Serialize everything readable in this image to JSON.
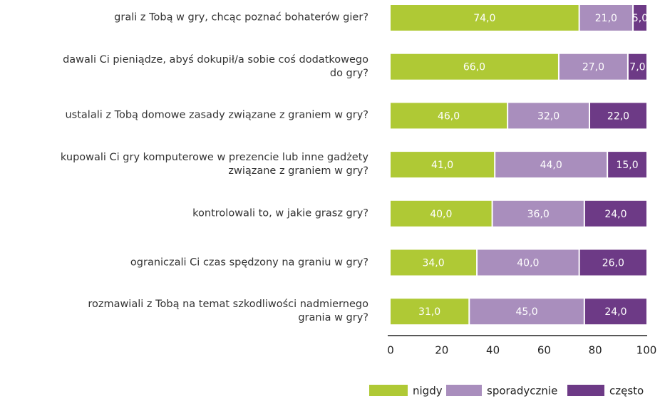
{
  "chart_data": {
    "type": "stacked-bar-horizontal",
    "categories": [
      "grali z Tobą w gry, chcąc poznać bohaterów gier?",
      "dawali Ci pieniądze, abyś dokupił/a sobie coś dodatkowego\ndo gry?",
      "ustalali z Tobą domowe zasady związane z graniem w gry?",
      "kupowali Ci gry komputerowe w prezencie lub inne gadżety\nzwiązane z graniem w gry?",
      "kontrolowali to, w jakie grasz gry?",
      "ograniczali Ci czas spędzony na graniu w gry?",
      "rozmawiali z Tobą na temat szkodliwości nadmiernego\ngrania w gry?"
    ],
    "series": [
      {
        "name": "nigdy",
        "color": "#afc935",
        "values": [
          74,
          66,
          46,
          41,
          40,
          34,
          31
        ],
        "value_labels": [
          "74,0",
          "66,0",
          "46,0",
          "41,0",
          "40,0",
          "34,0",
          "31,0"
        ]
      },
      {
        "name": "sporadycznie",
        "color": "#a98ebd",
        "values": [
          21,
          27,
          32,
          44,
          36,
          40,
          45
        ],
        "value_labels": [
          "21,0",
          "27,0",
          "32,0",
          "44,0",
          "36,0",
          "40,0",
          "45,0"
        ]
      },
      {
        "name": "często",
        "color": "#6d3a86",
        "values": [
          5,
          7,
          22,
          15,
          24,
          26,
          24
        ],
        "value_labels": [
          "5,0",
          "7,0",
          "22,0",
          "15,0",
          "24,0",
          "26,0",
          "24,0"
        ]
      }
    ],
    "xlim": [
      0,
      100
    ],
    "xticks": [
      0,
      20,
      40,
      60,
      80,
      100
    ],
    "legend": "bottom-right"
  }
}
